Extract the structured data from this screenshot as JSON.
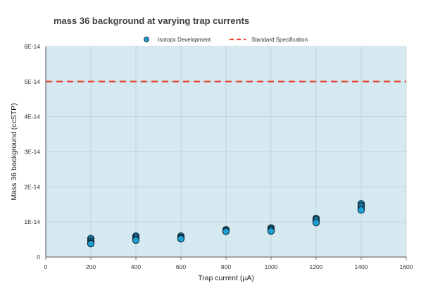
{
  "chart_data": {
    "type": "scatter",
    "title": "mass 36 background at varying trap currents",
    "xlabel": "Trap current (μA)",
    "ylabel": "Mass 36 background (ccSTP)",
    "xlim": [
      0,
      1600
    ],
    "ylim": [
      0,
      6e-14
    ],
    "x_ticks": [
      0,
      200,
      400,
      600,
      800,
      1000,
      1200,
      1400,
      1600
    ],
    "x_tick_labels": [
      "0",
      "200",
      "400",
      "600",
      "800",
      "1000",
      "1200",
      "1400",
      "1600"
    ],
    "y_ticks": [
      0,
      1e-14,
      2e-14,
      3e-14,
      4e-14,
      5e-14,
      6e-14
    ],
    "y_tick_labels": [
      "0",
      "1E-14",
      "2E-14",
      "3E-14",
      "4E-14",
      "5E-14",
      "6E-14"
    ],
    "grid": true,
    "legend_position": "top-center",
    "plot_background": "#d5e9f1",
    "series": [
      {
        "name": "Isotopx Development",
        "color": "#1ba1d6",
        "marker": "circle",
        "points": [
          {
            "x": 200,
            "y": 5.3e-15
          },
          {
            "x": 200,
            "y": 4.8e-15
          },
          {
            "x": 200,
            "y": 4.4e-15
          },
          {
            "x": 200,
            "y": 4e-15
          },
          {
            "x": 200,
            "y": 3.8e-15
          },
          {
            "x": 400,
            "y": 6e-15
          },
          {
            "x": 400,
            "y": 5.7e-15
          },
          {
            "x": 400,
            "y": 5.4e-15
          },
          {
            "x": 400,
            "y": 5e-15
          },
          {
            "x": 400,
            "y": 4.8e-15
          },
          {
            "x": 600,
            "y": 6e-15
          },
          {
            "x": 600,
            "y": 5.7e-15
          },
          {
            "x": 600,
            "y": 5.4e-15
          },
          {
            "x": 600,
            "y": 5.2e-15
          },
          {
            "x": 800,
            "y": 7.8e-15
          },
          {
            "x": 800,
            "y": 7.5e-15
          },
          {
            "x": 800,
            "y": 7.3e-15
          },
          {
            "x": 1000,
            "y": 8.3e-15
          },
          {
            "x": 1000,
            "y": 8e-15
          },
          {
            "x": 1000,
            "y": 7.7e-15
          },
          {
            "x": 1000,
            "y": 7.4e-15
          },
          {
            "x": 1200,
            "y": 1.1e-14
          },
          {
            "x": 1200,
            "y": 1.07e-14
          },
          {
            "x": 1200,
            "y": 1.03e-14
          },
          {
            "x": 1200,
            "y": 9.8e-15
          },
          {
            "x": 1400,
            "y": 1.52e-14
          },
          {
            "x": 1400,
            "y": 1.47e-14
          },
          {
            "x": 1400,
            "y": 1.43e-14
          },
          {
            "x": 1400,
            "y": 1.38e-14
          },
          {
            "x": 1400,
            "y": 1.34e-14
          }
        ]
      },
      {
        "name": "Standard Specification",
        "color": "#e8412f",
        "line_style": "dashed",
        "y_constant": 5e-14
      }
    ]
  }
}
